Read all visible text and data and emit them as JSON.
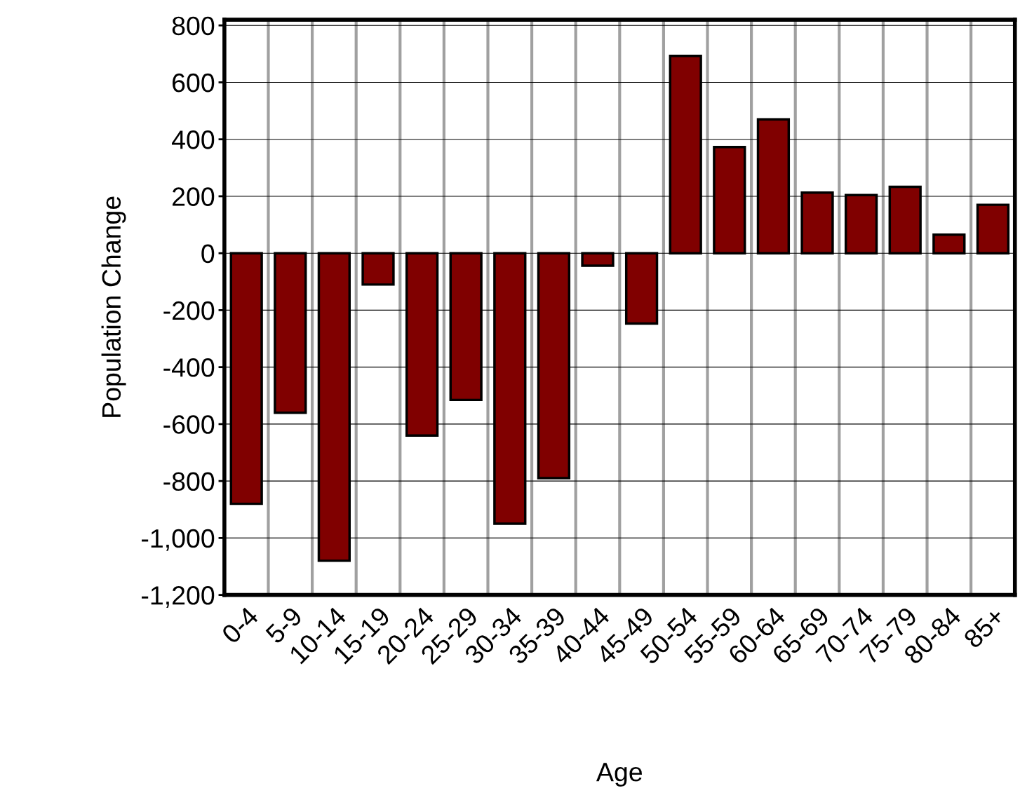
{
  "chart_data": {
    "type": "bar",
    "xlabel": "Age",
    "ylabel": "Population Change",
    "categories": [
      "0-4",
      "5-9",
      "10-14",
      "15-19",
      "20-24",
      "25-29",
      "30-34",
      "35-39",
      "40-44",
      "45-49",
      "50-54",
      "55-59",
      "60-64",
      "65-69",
      "70-74",
      "75-79",
      "80-84",
      "85+"
    ],
    "values": [
      -880,
      -560,
      -1080,
      -110,
      -640,
      -515,
      -950,
      -790,
      -44,
      -247,
      693,
      373,
      470,
      213,
      204,
      233,
      65,
      170
    ],
    "color": "#800000",
    "ylim": [
      -1200,
      820
    ],
    "yticks": [
      {
        "value": -1200,
        "label": "-1,200"
      },
      {
        "value": -1000,
        "label": "-1,000"
      },
      -800,
      -600,
      -400,
      -200,
      0,
      200,
      400,
      600,
      800
    ],
    "grid": true
  }
}
